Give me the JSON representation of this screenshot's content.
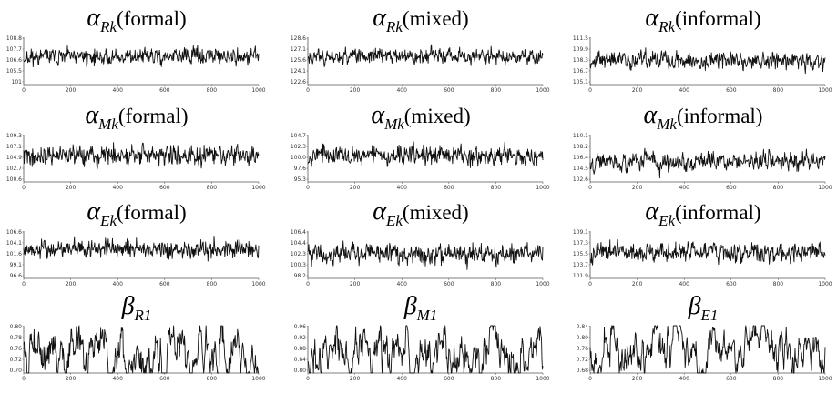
{
  "chart_data": [
    {
      "type": "line",
      "title_symbol": "α",
      "title_subscript": "Rk",
      "title_condition": "(formal)",
      "yticks": [
        "108.8",
        "107.7",
        "106.6",
        "105.5",
        "101"
      ],
      "ylim": [
        101,
        108.8
      ],
      "xticks": [
        0,
        200,
        400,
        600,
        800,
        1000
      ],
      "xlim": [
        0,
        1000
      ],
      "series": [
        {
          "mean": 105.6,
          "amp": 1.3,
          "smooth": 0.45,
          "seed": 11
        }
      ]
    },
    {
      "type": "line",
      "title_symbol": "α",
      "title_subscript": "Rk",
      "title_condition": "(mixed)",
      "yticks": [
        "128.6",
        "127.1",
        "125.6",
        "124.1",
        "122.6"
      ],
      "ylim": [
        122.6,
        128.6
      ],
      "xticks": [
        0,
        200,
        400,
        600,
        800,
        1000
      ],
      "xlim": [
        0,
        1000
      ],
      "series": [
        {
          "mean": 126.2,
          "amp": 0.9,
          "smooth": 0.45,
          "seed": 23
        }
      ]
    },
    {
      "type": "line",
      "title_symbol": "α",
      "title_subscript": "Rk",
      "title_condition": "(informal)",
      "yticks": [
        "111.5",
        "109.9",
        "108.3",
        "106.7",
        "105.1"
      ],
      "ylim": [
        105.1,
        111.5
      ],
      "xticks": [
        0,
        200,
        400,
        600,
        800,
        1000
      ],
      "xlim": [
        0,
        1000
      ],
      "series": [
        {
          "mean": 108.4,
          "amp": 1.1,
          "smooth": 0.45,
          "seed": 37
        }
      ]
    },
    {
      "type": "line",
      "title_symbol": "α",
      "title_subscript": "Mk",
      "title_condition": "(formal)",
      "yticks": [
        "109.3",
        "107.1",
        "104.9",
        "102.7",
        "100.6"
      ],
      "ylim": [
        100.6,
        109.3
      ],
      "xticks": [
        0,
        200,
        400,
        600,
        800,
        1000
      ],
      "xlim": [
        0,
        1000
      ],
      "series": [
        {
          "mean": 105.4,
          "amp": 1.7,
          "smooth": 0.5,
          "seed": 41
        }
      ]
    },
    {
      "type": "line",
      "title_symbol": "α",
      "title_subscript": "Mk",
      "title_condition": "(mixed)",
      "yticks": [
        "104.7",
        "102.3",
        "100.0",
        "97.6",
        "95.3"
      ],
      "ylim": [
        95.3,
        104.7
      ],
      "xticks": [
        0,
        200,
        400,
        600,
        800,
        1000
      ],
      "xlim": [
        0,
        1000
      ],
      "series": [
        {
          "mean": 100.6,
          "amp": 1.8,
          "smooth": 0.5,
          "seed": 53
        }
      ]
    },
    {
      "type": "line",
      "title_symbol": "α",
      "title_subscript": "Mk",
      "title_condition": "(informal)",
      "yticks": [
        "110.1",
        "108.2",
        "106.4",
        "104.5",
        "102.6"
      ],
      "ylim": [
        102.6,
        110.1
      ],
      "xticks": [
        0,
        200,
        400,
        600,
        800,
        1000
      ],
      "xlim": [
        0,
        1000
      ],
      "series": [
        {
          "mean": 105.9,
          "amp": 1.3,
          "smooth": 0.4,
          "seed": 67
        }
      ]
    },
    {
      "type": "line",
      "title_symbol": "α",
      "title_subscript": "Ek",
      "title_condition": "(formal)",
      "yticks": [
        "106.6",
        "104.1",
        "101.6",
        "99.1",
        "96.6"
      ],
      "ylim": [
        96.6,
        106.6
      ],
      "xticks": [
        0,
        200,
        400,
        600,
        800,
        1000
      ],
      "xlim": [
        0,
        1000
      ],
      "series": [
        {
          "mean": 102.8,
          "amp": 1.9,
          "smooth": 0.55,
          "seed": 79
        }
      ]
    },
    {
      "type": "line",
      "title_symbol": "α",
      "title_subscript": "Ek",
      "title_condition": "(mixed)",
      "yticks": [
        "106.4",
        "104.4",
        "102.3",
        "100.3",
        "98.2"
      ],
      "ylim": [
        98.2,
        106.4
      ],
      "xticks": [
        0,
        200,
        400,
        600,
        800,
        1000
      ],
      "xlim": [
        0,
        1000
      ],
      "series": [
        {
          "mean": 102.5,
          "amp": 1.6,
          "smooth": 0.45,
          "seed": 83
        }
      ]
    },
    {
      "type": "line",
      "title_symbol": "α",
      "title_subscript": "Ek",
      "title_condition": "(informal)",
      "yticks": [
        "109.1",
        "107.3",
        "105.5",
        "103.7",
        "101.9"
      ],
      "ylim": [
        101.9,
        109.1
      ],
      "xticks": [
        0,
        200,
        400,
        600,
        800,
        1000
      ],
      "xlim": [
        0,
        1000
      ],
      "series": [
        {
          "mean": 105.8,
          "amp": 1.3,
          "smooth": 0.4,
          "seed": 97
        }
      ]
    },
    {
      "type": "line",
      "title_symbol": "β",
      "title_subscript": "R1",
      "title_condition": "",
      "yticks": [
        "0.80",
        "0.78",
        "0.76",
        "0.72",
        "0.70"
      ],
      "ylim": [
        0.7,
        0.8
      ],
      "xticks": [
        0,
        200,
        400,
        600,
        800,
        1000
      ],
      "xlim": [
        0,
        1000
      ],
      "series": [
        {
          "mean": 0.755,
          "amp": 0.018,
          "smooth": 0.05,
          "seed": 101
        }
      ]
    },
    {
      "type": "line",
      "title_symbol": "β",
      "title_subscript": "M1",
      "title_condition": "",
      "yticks": [
        "0.96",
        "0.92",
        "0.88",
        "0.84",
        "0.80"
      ],
      "ylim": [
        0.8,
        0.96
      ],
      "xticks": [
        0,
        200,
        400,
        600,
        800,
        1000
      ],
      "xlim": [
        0,
        1000
      ],
      "series": [
        {
          "mean": 0.862,
          "amp": 0.028,
          "smooth": 0.05,
          "seed": 113
        }
      ]
    },
    {
      "type": "line",
      "title_symbol": "β",
      "title_subscript": "E1",
      "title_condition": "",
      "yticks": [
        "0.84",
        "0.80",
        "0.76",
        "0.72",
        "0.68"
      ],
      "ylim": [
        0.68,
        0.84
      ],
      "xticks": [
        0,
        200,
        400,
        600,
        800,
        1000
      ],
      "xlim": [
        0,
        1000
      ],
      "series": [
        {
          "mean": 0.752,
          "amp": 0.026,
          "smooth": 0.05,
          "seed": 127
        }
      ]
    }
  ]
}
